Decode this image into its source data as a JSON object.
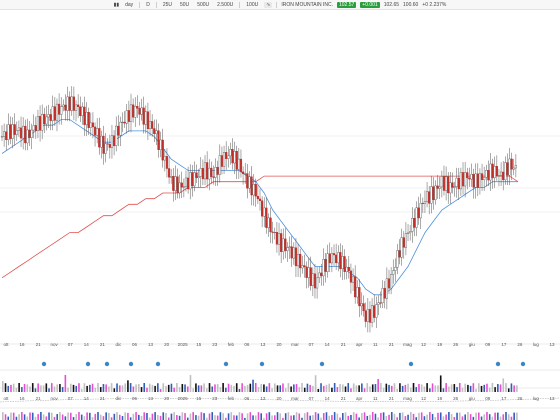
{
  "toolbar": {
    "chart_type_icon": "candlestick-icon",
    "scale": "day",
    "interval": "D",
    "ma_buttons": [
      "25U",
      "50U",
      "500U",
      "2.500U"
    ],
    "period": "100U",
    "security_name": "IRON MOUNTAIN INC.",
    "price_value": "102.57",
    "change_value": "+0.001",
    "quote": "102.65",
    "range_value": "100.60",
    "change_pct": "+0 2.237%",
    "colors": {
      "up": "#2a9d3c",
      "down": "#c0302a",
      "accent": "#2a9d3c"
    }
  },
  "x_axis_labels": [
    "ott",
    "16",
    "21",
    "nov",
    "07",
    "14",
    "21",
    "dic",
    "06",
    "13",
    "20",
    "2025",
    "15",
    "23",
    "feb",
    "06",
    "13",
    "20",
    "mar",
    "07",
    "14",
    "21",
    "apr",
    "11",
    "21",
    "mag",
    "12",
    "19",
    "26",
    "giu",
    "09",
    "17",
    "26",
    "lug",
    "13"
  ],
  "chart_data": {
    "type": "candlestick",
    "title": "",
    "xlabel": "",
    "ylabel": "",
    "series": [
      {
        "name": "price",
        "values": [
          102,
          103,
          103,
          102,
          104,
          105,
          106,
          107,
          108,
          107,
          105,
          103,
          100,
          101,
          104,
          106,
          107,
          105,
          103,
          99,
          94,
          93,
          94,
          95,
          96,
          95,
          98,
          99,
          97,
          94,
          92,
          88,
          85,
          83,
          82,
          80,
          78,
          76,
          79,
          81,
          80,
          78,
          74,
          70,
          71,
          74,
          77,
          82,
          85,
          88,
          91,
          92,
          94,
          93,
          94,
          95,
          94,
          95,
          96,
          95,
          97,
          96
        ]
      },
      {
        "name": "ma-short",
        "values": [
          99,
          100,
          101,
          102,
          103,
          104,
          104,
          105,
          105,
          104,
          103,
          102,
          101,
          101,
          102,
          103,
          103,
          103,
          102,
          100,
          98,
          97,
          96,
          96,
          96,
          96,
          96,
          96,
          96,
          95,
          94,
          92,
          89,
          87,
          85,
          83,
          81,
          79,
          79,
          79,
          79,
          78,
          77,
          75,
          74,
          74,
          75,
          77,
          79,
          82,
          85,
          87,
          89,
          90,
          91,
          92,
          93,
          93,
          94,
          94,
          94,
          94
        ]
      },
      {
        "name": "ma-long",
        "values": [
          77,
          78,
          79,
          80,
          81,
          82,
          83,
          84,
          85,
          85,
          86,
          87,
          88,
          88,
          89,
          90,
          90,
          91,
          91,
          92,
          92,
          92,
          93,
          93,
          93,
          94,
          94,
          94,
          94,
          94,
          94,
          95,
          95,
          95,
          95,
          95,
          95,
          95,
          95,
          95,
          95,
          95,
          95,
          95,
          95,
          95,
          95,
          95,
          95,
          95,
          95,
          95,
          95,
          95,
          95,
          95,
          95,
          95,
          95,
          95,
          95,
          94
        ]
      }
    ],
    "volume_rows": 2,
    "grid": true
  }
}
